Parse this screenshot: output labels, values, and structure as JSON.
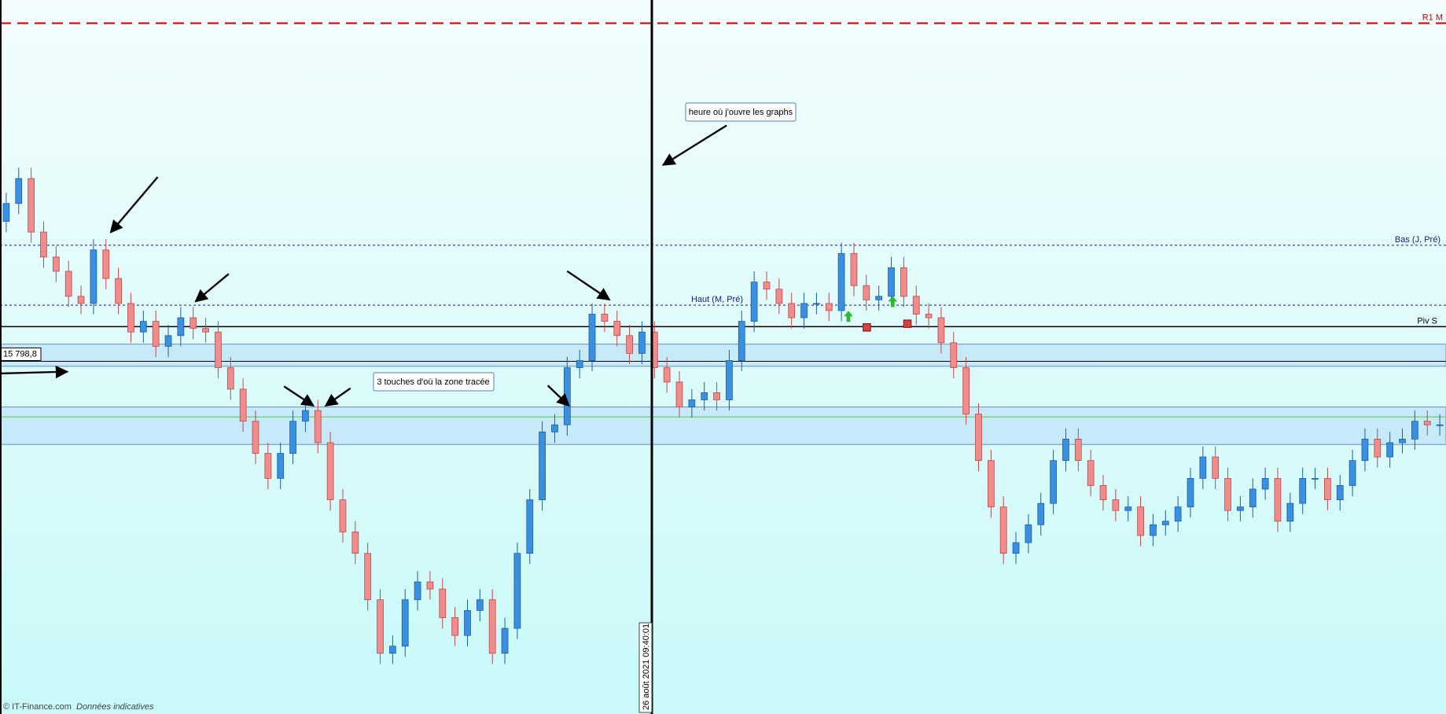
{
  "chart_data": {
    "type": "candlestick",
    "ylim": [
      15700,
      15900
    ],
    "open": [
      15838,
      15843,
      15850,
      15835,
      15828,
      15824,
      15817,
      15815,
      15830,
      15822,
      15815,
      15807,
      15810,
      15803,
      15806,
      15811,
      15808,
      15807,
      15797,
      15791,
      15782,
      15773,
      15766,
      15773,
      15782,
      15785,
      15776,
      15760,
      15751,
      15745,
      15732,
      15717,
      15719,
      15732,
      15737,
      15735,
      15727,
      15722,
      15729,
      15732,
      15717,
      15724,
      15745,
      15760,
      15779,
      15781,
      15797,
      15799,
      15812,
      15810,
      15806,
      15801,
      15807,
      15797,
      15793,
      15786,
      15788,
      15790,
      15788,
      15799,
      15810,
      15821,
      15819,
      15815,
      15811,
      15815,
      15815,
      15813,
      15829,
      15820,
      15816,
      15817,
      15825,
      15817,
      15812,
      15811,
      15804,
      15797,
      15784,
      15771,
      15758,
      15745,
      15748,
      15753,
      15759,
      15771,
      15777,
      15771,
      15764,
      15760,
      15757,
      15758,
      15750,
      15753,
      15754,
      15758,
      15766,
      15772,
      15766,
      15757,
      15758,
      15763,
      15766,
      15754,
      15759,
      15766,
      15766,
      15760,
      15764,
      15771,
      15777,
      15772,
      15776,
      15777,
      15782,
      15781
    ],
    "high": [
      15846,
      15853,
      15853,
      15838,
      15831,
      15827,
      15820,
      15833,
      15833,
      15825,
      15818,
      15813,
      15813,
      15809,
      15814,
      15814,
      15811,
      15810,
      15800,
      15794,
      15785,
      15776,
      15776,
      15785,
      15788,
      15788,
      15779,
      15763,
      15754,
      15748,
      15735,
      15722,
      15735,
      15740,
      15740,
      15738,
      15730,
      15732,
      15735,
      15735,
      15727,
      15748,
      15763,
      15782,
      15784,
      15800,
      15802,
      15815,
      15815,
      15813,
      15809,
      15810,
      15810,
      15800,
      15796,
      15791,
      15793,
      15793,
      15802,
      15813,
      15824,
      15824,
      15822,
      15818,
      15818,
      15818,
      15818,
      15832,
      15832,
      15823,
      15820,
      15828,
      15828,
      15820,
      15815,
      15814,
      15807,
      15800,
      15787,
      15774,
      15761,
      15751,
      15756,
      15762,
      15774,
      15780,
      15780,
      15774,
      15767,
      15763,
      15761,
      15761,
      15756,
      15757,
      15761,
      15769,
      15775,
      15775,
      15769,
      15761,
      15766,
      15769,
      15769,
      15762,
      15769,
      15769,
      15769,
      15767,
      15774,
      15780,
      15780,
      15779,
      15780,
      15785,
      15785,
      15784
    ],
    "low": [
      15835,
      15840,
      15832,
      15825,
      15821,
      15814,
      15812,
      15812,
      15819,
      15812,
      15804,
      15804,
      15800,
      15800,
      15803,
      15805,
      15804,
      15794,
      15788,
      15779,
      15770,
      15763,
      15763,
      15770,
      15779,
      15773,
      15757,
      15748,
      15742,
      15729,
      15714,
      15714,
      15716,
      15729,
      15732,
      15724,
      15719,
      15719,
      15726,
      15714,
      15714,
      15721,
      15742,
      15757,
      15776,
      15778,
      15794,
      15796,
      15807,
      15803,
      15798,
      15798,
      15794,
      15790,
      15783,
      15783,
      15785,
      15785,
      15785,
      15796,
      15807,
      15816,
      15812,
      15808,
      15808,
      15812,
      15810,
      15810,
      15817,
      15813,
      15813,
      15814,
      15814,
      15809,
      15808,
      15801,
      15794,
      15781,
      15768,
      15755,
      15742,
      15742,
      15745,
      15750,
      15756,
      15768,
      15768,
      15761,
      15757,
      15754,
      15754,
      15747,
      15747,
      15750,
      15751,
      15755,
      15763,
      15763,
      15754,
      15754,
      15755,
      15760,
      15751,
      15751,
      15756,
      15763,
      15757,
      15757,
      15761,
      15768,
      15769,
      15769,
      15773,
      15774,
      15778,
      15778
    ],
    "close": [
      15843,
      15850,
      15835,
      15828,
      15824,
      15817,
      15815,
      15830,
      15822,
      15815,
      15807,
      15810,
      15803,
      15806,
      15811,
      15808,
      15807,
      15797,
      15791,
      15782,
      15773,
      15766,
      15773,
      15782,
      15785,
      15776,
      15760,
      15751,
      15745,
      15732,
      15717,
      15719,
      15732,
      15737,
      15735,
      15727,
      15722,
      15729,
      15732,
      15717,
      15724,
      15745,
      15760,
      15779,
      15781,
      15797,
      15799,
      15812,
      15810,
      15806,
      15801,
      15807,
      15797,
      15793,
      15786,
      15788,
      15790,
      15788,
      15799,
      15810,
      15821,
      15819,
      15815,
      15811,
      15815,
      15815,
      15813,
      15829,
      15820,
      15816,
      15817,
      15825,
      15817,
      15812,
      15811,
      15804,
      15797,
      15784,
      15771,
      15758,
      15745,
      15748,
      15753,
      15759,
      15771,
      15777,
      15771,
      15764,
      15760,
      15757,
      15758,
      15750,
      15753,
      15754,
      15758,
      15766,
      15772,
      15766,
      15757,
      15758,
      15763,
      15766,
      15754,
      15759,
      15766,
      15766,
      15760,
      15764,
      15771,
      15777,
      15772,
      15776,
      15777,
      15782,
      15781,
      15781
    ],
    "up_color": "#3a8fe0",
    "down_color": "#f08c8c",
    "levels": [
      {
        "label": "R1 M",
        "value": 15893.5,
        "color": "#cc0000",
        "style": "dashed"
      },
      {
        "label": "Bas (J, Pré)",
        "value": 15831.3,
        "color": "#1a1a8c",
        "style": "dotted"
      },
      {
        "label": "Haut (M, Pré)",
        "value": 15814.5,
        "color": "#1a1a8c",
        "style": "dotted"
      },
      {
        "label": "Piv S",
        "value": 15808.5,
        "color": "#000000",
        "style": "solid"
      },
      {
        "value": 15783.2,
        "color": "#7fd07f",
        "style": "solid"
      }
    ],
    "price_label": {
      "label": "15 798,8",
      "value": 15798.8
    },
    "zones": [
      [
        15797.4,
        15803.6
      ],
      [
        15775.5,
        15786
      ]
    ],
    "cursor_time": "26 août 2021 09:40:01"
  },
  "annotations": [
    "heure où j'ouvre les graphs",
    "3 touches d'où la zone tracée"
  ],
  "footer": {
    "source": "© IT-Finance.com",
    "note": "Données indicatives"
  }
}
